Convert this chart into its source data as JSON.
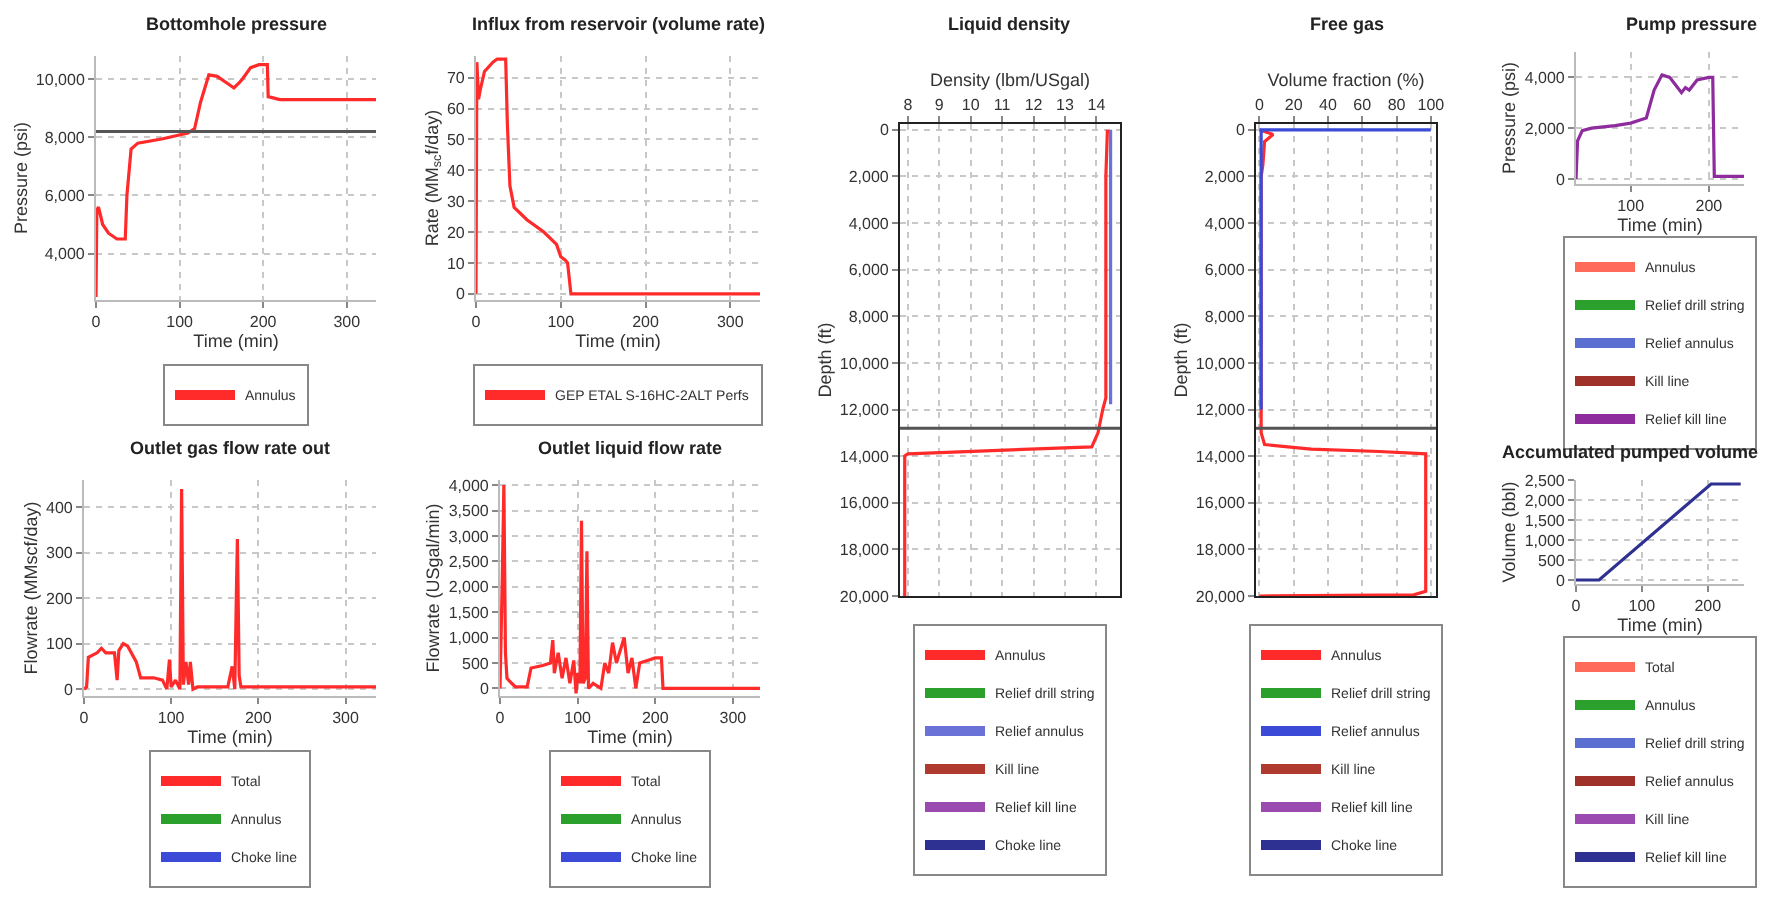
{
  "chart_data": [
    {
      "type": "line",
      "title": "Bottomhole pressure",
      "xlabel": "Time (min)",
      "ylabel": "Pressure (psi)",
      "xlim": [
        0,
        335
      ],
      "xticks": [
        0,
        100,
        200,
        300
      ],
      "ylim": [
        2400,
        10800
      ],
      "yticks": [
        {
          "value": 4000,
          "label": "4,000"
        },
        {
          "value": 6000,
          "label": "6,000"
        },
        {
          "value": 8000,
          "label": "8,000"
        },
        {
          "value": 10000,
          "label": "10,000"
        }
      ],
      "grid": true,
      "legend": "bottom",
      "ref_lines": [
        {
          "axis": "y",
          "value": 8200,
          "color": "#555555"
        }
      ],
      "series": [
        {
          "name": "Annulus",
          "color": "#ff2a2a",
          "x": [
            0,
            1,
            3,
            8,
            15,
            25,
            35,
            37,
            42,
            50,
            80,
            110,
            118,
            125,
            135,
            145,
            160,
            165,
            172,
            175,
            185,
            195,
            205,
            206,
            220,
            335
          ],
          "values": [
            2500,
            5500,
            5600,
            5000,
            4700,
            4500,
            4500,
            6000,
            7600,
            7800,
            7950,
            8150,
            8300,
            9200,
            10150,
            10100,
            9800,
            9700,
            9900,
            10000,
            10400,
            10500,
            10500,
            9400,
            9300,
            9300
          ]
        }
      ]
    },
    {
      "type": "line",
      "title": "Influx from reservoir (volume rate)",
      "xlabel": "Time (min)",
      "ylabel": "Rate (MM$_{sc}$f/day)",
      "xlim": [
        0,
        335
      ],
      "xticks": [
        0,
        100,
        200,
        300
      ],
      "ylim": [
        -2,
        77
      ],
      "yticks": [
        0,
        10,
        20,
        30,
        40,
        50,
        60,
        70
      ],
      "grid": true,
      "legend": "bottom",
      "series": [
        {
          "name": "GEP ETAL S-16HC-2ALT Perfs",
          "color": "#ff2a2a",
          "x": [
            0,
            1,
            3,
            5,
            10,
            20,
            25,
            35,
            37,
            40,
            45,
            60,
            80,
            95,
            100,
            105,
            108,
            110,
            112,
            335
          ],
          "values": [
            0,
            75,
            63,
            66,
            72,
            75,
            76,
            76,
            55,
            35,
            28,
            24,
            20,
            16,
            12,
            11,
            10,
            5,
            0,
            0
          ]
        }
      ]
    },
    {
      "type": "line",
      "title": "Outlet gas flow rate out",
      "xlabel": "Time (min)",
      "ylabel": "Flowrate (MMscf/day)",
      "xlim": [
        0,
        335
      ],
      "xticks": [
        0,
        100,
        200,
        300
      ],
      "ylim": [
        -15,
        460
      ],
      "yticks": [
        0,
        100,
        200,
        300,
        400
      ],
      "grid": true,
      "legend": "bottom",
      "series": [
        {
          "name": "Total",
          "color": "#ff2a2a",
          "x": [
            0,
            3,
            5,
            15,
            20,
            25,
            35,
            38,
            40,
            45,
            50,
            60,
            65,
            80,
            90,
            95,
            98,
            100,
            105,
            110,
            112,
            114,
            117,
            120,
            122,
            125,
            130,
            165,
            170,
            173,
            175,
            176,
            178,
            180,
            185,
            335
          ],
          "values": [
            0,
            5,
            70,
            80,
            90,
            80,
            80,
            20,
            85,
            100,
            95,
            60,
            25,
            25,
            20,
            0,
            65,
            5,
            20,
            0,
            440,
            10,
            60,
            10,
            60,
            0,
            5,
            5,
            50,
            0,
            230,
            330,
            30,
            5,
            5,
            5
          ]
        },
        {
          "name": "Annulus",
          "color": "#2ca02c"
        },
        {
          "name": "Choke line",
          "color": "#3b4bd8"
        }
      ]
    },
    {
      "type": "line",
      "title": "Outlet liquid flow rate",
      "xlabel": "Time (min)",
      "ylabel": "Flowrate (USgal/min)",
      "xlim": [
        0,
        335
      ],
      "xticks": [
        0,
        100,
        200,
        300
      ],
      "ylim": [
        -150,
        4100
      ],
      "yticks": [
        0,
        500,
        {
          "value": 1000,
          "label": "1,000"
        },
        {
          "value": 1500,
          "label": "1,500"
        },
        {
          "value": 2000,
          "label": "2,000"
        },
        {
          "value": 2500,
          "label": "2,500"
        },
        {
          "value": 3000,
          "label": "3,000"
        },
        {
          "value": 3500,
          "label": "3,500"
        },
        {
          "value": 4000,
          "label": "4,000"
        }
      ],
      "grid": true,
      "legend": "bottom",
      "series": [
        {
          "name": "Total",
          "color": "#ff2a2a",
          "x": [
            0,
            3,
            5,
            7,
            9,
            15,
            20,
            35,
            40,
            55,
            65,
            68,
            70,
            75,
            80,
            85,
            90,
            95,
            98,
            100,
            103,
            105,
            107,
            110,
            112,
            114,
            120,
            130,
            135,
            140,
            145,
            150,
            160,
            165,
            170,
            175,
            180,
            190,
            200,
            208,
            210,
            335
          ],
          "values": [
            0,
            2200,
            4000,
            700,
            200,
            100,
            30,
            30,
            400,
            450,
            500,
            950,
            300,
            700,
            200,
            600,
            100,
            550,
            -100,
            300,
            100,
            3300,
            100,
            200,
            2700,
            0,
            100,
            0,
            500,
            300,
            900,
            500,
            1000,
            300,
            600,
            0,
            500,
            550,
            600,
            600,
            0,
            0
          ]
        },
        {
          "name": "Annulus",
          "color": "#2ca02c"
        },
        {
          "name": "Choke line",
          "color": "#3b4bd8"
        }
      ]
    },
    {
      "type": "line",
      "title": "Liquid density",
      "xlabel": "Density (lbm/USgal)",
      "ylabel": "Depth (ft)",
      "xlim": [
        7.75,
        14.75
      ],
      "xticks": [
        8,
        9,
        10,
        11,
        12,
        13,
        14
      ],
      "ylim": [
        20000,
        -250
      ],
      "yticks": [
        0,
        {
          "value": 2000,
          "label": "2,000"
        },
        {
          "value": 4000,
          "label": "4,000"
        },
        {
          "value": 6000,
          "label": "6,000"
        },
        {
          "value": 8000,
          "label": "8,000"
        },
        {
          "value": 10000,
          "label": "10,000"
        },
        {
          "value": 12000,
          "label": "12,000"
        },
        {
          "value": 14000,
          "label": "14,000"
        },
        {
          "value": 16000,
          "label": "16,000"
        },
        {
          "value": 18000,
          "label": "18,000"
        },
        {
          "value": 20000,
          "label": "20,000"
        }
      ],
      "grid": true,
      "legend": "bottom",
      "ref_lines": [
        {
          "axis": "y",
          "value": 12800,
          "color": "#555555"
        }
      ],
      "series": [
        {
          "name": "Annulus",
          "color": "#ff2a2a",
          "x": [
            14.35,
            14.3,
            14.3,
            14.2,
            14.05,
            13.85,
            8.0,
            7.9,
            7.9
          ],
          "values": [
            0,
            2000,
            11500,
            12000,
            13000,
            13600,
            13900,
            14000,
            20000
          ]
        },
        {
          "name": "Relief drill string",
          "color": "#2ca02c"
        },
        {
          "name": "Relief annulus",
          "color": "#6a72d8",
          "x": [
            14.45,
            14.45,
            14.4
          ],
          "values": [
            0,
            11700,
            11700
          ]
        },
        {
          "name": "Kill line",
          "color": "#b03a2e"
        },
        {
          "name": "Relief kill line",
          "color": "#9b4bb0"
        },
        {
          "name": "Choke line",
          "color": "#2e3192"
        }
      ]
    },
    {
      "type": "line",
      "title": "Free gas",
      "xlabel": "Volume fraction (%)",
      "ylabel": "Depth (ft)",
      "xlim": [
        -2,
        103
      ],
      "xticks": [
        0,
        20,
        40,
        60,
        80,
        100
      ],
      "ylim": [
        20000,
        -250
      ],
      "yticks": [
        0,
        {
          "value": 2000,
          "label": "2,000"
        },
        {
          "value": 4000,
          "label": "4,000"
        },
        {
          "value": 6000,
          "label": "6,000"
        },
        {
          "value": 8000,
          "label": "8,000"
        },
        {
          "value": 10000,
          "label": "10,000"
        },
        {
          "value": 12000,
          "label": "12,000"
        },
        {
          "value": 14000,
          "label": "14,000"
        },
        {
          "value": 16000,
          "label": "16,000"
        },
        {
          "value": 18000,
          "label": "18,000"
        },
        {
          "value": 20000,
          "label": "20,000"
        }
      ],
      "grid": true,
      "legend": "bottom",
      "ref_lines": [
        {
          "axis": "y",
          "value": 12800,
          "color": "#555555"
        }
      ],
      "series": [
        {
          "name": "Annulus",
          "color": "#ff2a2a",
          "x": [
            0,
            8,
            3,
            2,
            1,
            1,
            3,
            30,
            70,
            97,
            97,
            90,
            0
          ],
          "values": [
            0,
            200,
            500,
            1500,
            2000,
            13000,
            13500,
            13700,
            13800,
            13900,
            19800,
            19950,
            20000
          ]
        },
        {
          "name": "Relief drill string",
          "color": "#2ca02c"
        },
        {
          "name": "Relief annulus",
          "color": "#3b4bd8",
          "x": [
            100,
            1,
            1
          ],
          "values": [
            0,
            0,
            12000
          ]
        },
        {
          "name": "Kill line",
          "color": "#b03a2e"
        },
        {
          "name": "Relief kill line",
          "color": "#9b4bb0"
        },
        {
          "name": "Choke line",
          "color": "#2e3192"
        }
      ]
    },
    {
      "type": "line",
      "title": "Pump pressure",
      "xlabel": "Time (min)",
      "ylabel": "Pressure (psi)",
      "xlim": [
        30,
        245
      ],
      "xticks": [
        100,
        200
      ],
      "ylim": [
        -200,
        5000
      ],
      "yticks": [
        0,
        {
          "value": 2000,
          "label": "2,000"
        },
        {
          "value": 4000,
          "label": "4,000"
        }
      ],
      "grid": true,
      "legend": "bottom",
      "series": [
        {
          "name": "Annulus",
          "color": "#ff6a5a"
        },
        {
          "name": "Relief drill string",
          "color": "#2ca02c"
        },
        {
          "name": "Relief annulus",
          "color": "#5b6fd0"
        },
        {
          "name": "Kill line",
          "color": "#a0302a"
        },
        {
          "name": "Relief kill line",
          "color": "#8e2c9e",
          "x": [
            30,
            32,
            38,
            50,
            80,
            100,
            115,
            120,
            130,
            140,
            150,
            155,
            165,
            170,
            175,
            185,
            200,
            205,
            207,
            245
          ],
          "values": [
            0,
            1500,
            1900,
            2000,
            2100,
            2200,
            2350,
            2400,
            3500,
            4100,
            4000,
            3800,
            3400,
            3600,
            3500,
            3900,
            4000,
            4000,
            100,
            100
          ]
        }
      ]
    },
    {
      "type": "line",
      "title": "Accumulated pumped volume",
      "xlabel": "Time (min)",
      "ylabel": "Volume (bbl)",
      "xlim": [
        0,
        255
      ],
      "xticks": [
        0,
        100,
        200
      ],
      "ylim": [
        -100,
        2500
      ],
      "yticks": [
        0,
        500,
        {
          "value": 1000,
          "label": "1,000"
        },
        {
          "value": 1500,
          "label": "1,500"
        },
        {
          "value": 2000,
          "label": "2,000"
        },
        {
          "value": 2500,
          "label": "2,500"
        }
      ],
      "grid": true,
      "legend": "bottom",
      "series": [
        {
          "name": "Total",
          "color": "#ff6a5a"
        },
        {
          "name": "Annulus",
          "color": "#2ca02c"
        },
        {
          "name": "Relief drill string",
          "color": "#5b6fd0"
        },
        {
          "name": "Relief annulus",
          "color": "#a0302a"
        },
        {
          "name": "Kill line",
          "color": "#9b4bb0"
        },
        {
          "name": "Relief kill line",
          "color": "#2e3192",
          "x": [
            0,
            35,
            205,
            250
          ],
          "values": [
            0,
            0,
            2400,
            2400
          ]
        }
      ]
    }
  ]
}
